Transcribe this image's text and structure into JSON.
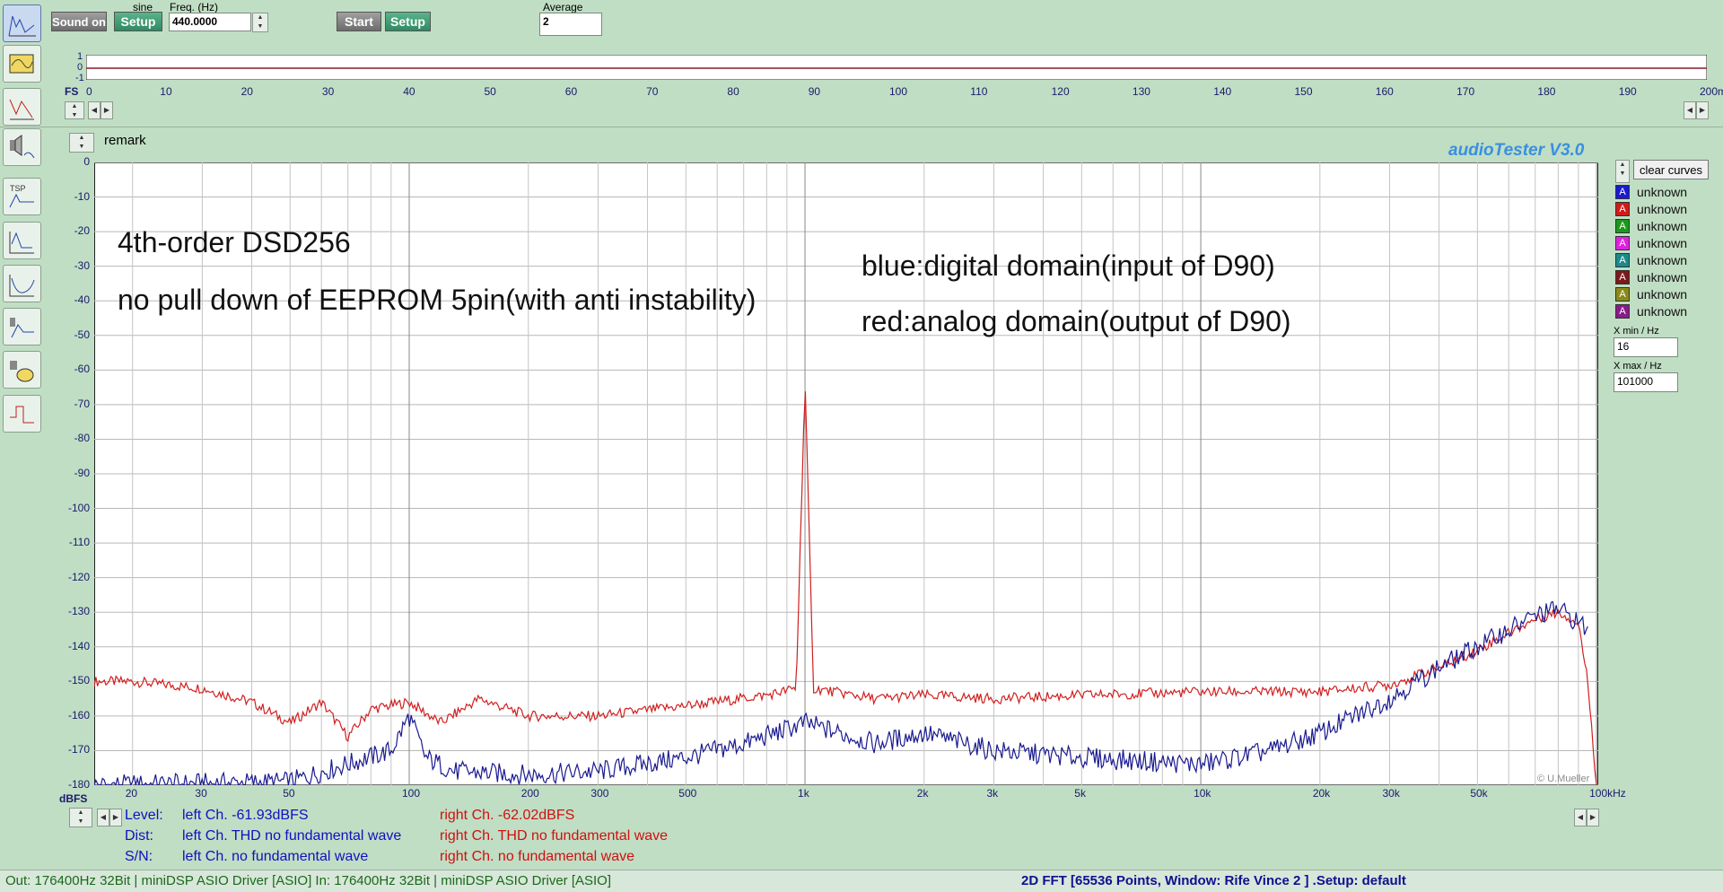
{
  "toolbar": {
    "sound_on_label": "Sound on",
    "sine_label": "sine",
    "setup1_label": "Setup",
    "freq_label": "Freq. (Hz)",
    "freq_value": "440.0000",
    "start_label": "Start",
    "setup2_label": "Setup",
    "average_label": "Average",
    "average_value": "2"
  },
  "scope": {
    "y_ticks": [
      "1",
      "0",
      "-1"
    ],
    "fs_label": "FS",
    "x_ticks": [
      "0",
      "10",
      "20",
      "30",
      "40",
      "50",
      "60",
      "70",
      "80",
      "90",
      "100",
      "110",
      "120",
      "130",
      "140",
      "150",
      "160",
      "170",
      "180",
      "190",
      "200ms"
    ]
  },
  "remark_label": "remark",
  "brand": "audioTester  V3.0",
  "credit": "© U.Mueller",
  "plot": {
    "y_ticks": [
      "0",
      "-10",
      "-20",
      "-30",
      "-40",
      "-50",
      "-60",
      "-70",
      "-80",
      "-90",
      "-100",
      "-110",
      "-120",
      "-130",
      "-140",
      "-150",
      "-160",
      "-170",
      "-180"
    ],
    "y_unit": "dBFS",
    "x_ticks": [
      "20",
      "30",
      "50",
      "100",
      "200",
      "300",
      "500",
      "1k",
      "2k",
      "3k",
      "5k",
      "10k",
      "20k",
      "30k",
      "50k",
      "100kHz"
    ],
    "annotations": {
      "line1": "4th-order DSD256",
      "line2": "no pull down of EEPROM 5pin(with anti instability)",
      "line3": "blue:digital domain(input of D90)",
      "line4": "red:analog domain(output of D90)"
    }
  },
  "legend": {
    "clear_label": "clear curves",
    "items": [
      {
        "letter": "A",
        "label": "unknown",
        "color": "#1a1ad0"
      },
      {
        "letter": "A",
        "label": "unknown",
        "color": "#d01a1a"
      },
      {
        "letter": "A",
        "label": "unknown",
        "color": "#1a9a1a"
      },
      {
        "letter": "A",
        "label": "unknown",
        "color": "#e020e0"
      },
      {
        "letter": "A",
        "label": "unknown",
        "color": "#1a8a8a"
      },
      {
        "letter": "A",
        "label": "unknown",
        "color": "#7a1a1a"
      },
      {
        "letter": "A",
        "label": "unknown",
        "color": "#8a8a1a"
      },
      {
        "letter": "A",
        "label": "unknown",
        "color": "#8a1a8a"
      }
    ],
    "xmin_label": "X min / Hz",
    "xmin_value": "16",
    "xmax_label": "X max / Hz",
    "xmax_value": "101000"
  },
  "readout": {
    "level_label": "Level:",
    "level_left": "left Ch. -61.93dBFS",
    "level_right": "right Ch. -62.02dBFS",
    "dist_label": "Dist:",
    "dist_left": "left Ch. THD no fundamental wave",
    "dist_right": "right Ch. THD no fundamental wave",
    "sn_label": "S/N:",
    "sn_left": "left Ch.  no fundamental wave",
    "sn_right": "right Ch.  no fundamental wave"
  },
  "status": {
    "left": "Out: 176400Hz 32Bit  | miniDSP ASIO Driver [ASIO] In: 176400Hz 32Bit  | miniDSP ASIO Driver [ASIO]",
    "right": "2D FFT [65536 Points, Window: Rife Vince 2 ]  .Setup:  default"
  },
  "chart_data": {
    "type": "line",
    "xscale": "log",
    "xlim": [
      16,
      101000
    ],
    "ylim": [
      -180,
      0
    ],
    "ylabel": "dBFS",
    "grid": true,
    "series": [
      {
        "color": "#d02020",
        "points": [
          [
            16,
            -150
          ],
          [
            20,
            -150
          ],
          [
            30,
            -152
          ],
          [
            40,
            -156
          ],
          [
            50,
            -162
          ],
          [
            60,
            -156
          ],
          [
            70,
            -166
          ],
          [
            80,
            -158
          ],
          [
            100,
            -156
          ],
          [
            120,
            -162
          ],
          [
            150,
            -155
          ],
          [
            200,
            -160
          ],
          [
            300,
            -160
          ],
          [
            500,
            -157
          ],
          [
            800,
            -154
          ],
          [
            950,
            -152
          ],
          [
            1000,
            -63
          ],
          [
            1050,
            -152
          ],
          [
            1500,
            -155
          ],
          [
            2000,
            -154
          ],
          [
            3000,
            -155
          ],
          [
            5000,
            -154
          ],
          [
            10000,
            -153
          ],
          [
            20000,
            -153
          ],
          [
            30000,
            -151
          ],
          [
            40000,
            -146
          ],
          [
            50000,
            -141
          ],
          [
            60000,
            -136
          ],
          [
            70000,
            -132
          ],
          [
            80000,
            -130
          ],
          [
            90000,
            -133
          ],
          [
            95000,
            -150
          ],
          [
            100000,
            -180
          ]
        ]
      },
      {
        "color": "#1a1a90",
        "points": [
          [
            16,
            -180
          ],
          [
            50,
            -179
          ],
          [
            90,
            -170
          ],
          [
            100,
            -160
          ],
          [
            110,
            -172
          ],
          [
            130,
            -176
          ],
          [
            200,
            -177
          ],
          [
            300,
            -176
          ],
          [
            500,
            -172
          ],
          [
            700,
            -168
          ],
          [
            1000,
            -162
          ],
          [
            1500,
            -168
          ],
          [
            2000,
            -165
          ],
          [
            3000,
            -170
          ],
          [
            5000,
            -172
          ],
          [
            10000,
            -174
          ],
          [
            15000,
            -170
          ],
          [
            20000,
            -165
          ],
          [
            30000,
            -155
          ],
          [
            40000,
            -146
          ],
          [
            50000,
            -140
          ],
          [
            60000,
            -135
          ],
          [
            70000,
            -131
          ],
          [
            80000,
            -129
          ],
          [
            90000,
            -133
          ],
          [
            95000,
            -135
          ]
        ]
      }
    ]
  }
}
